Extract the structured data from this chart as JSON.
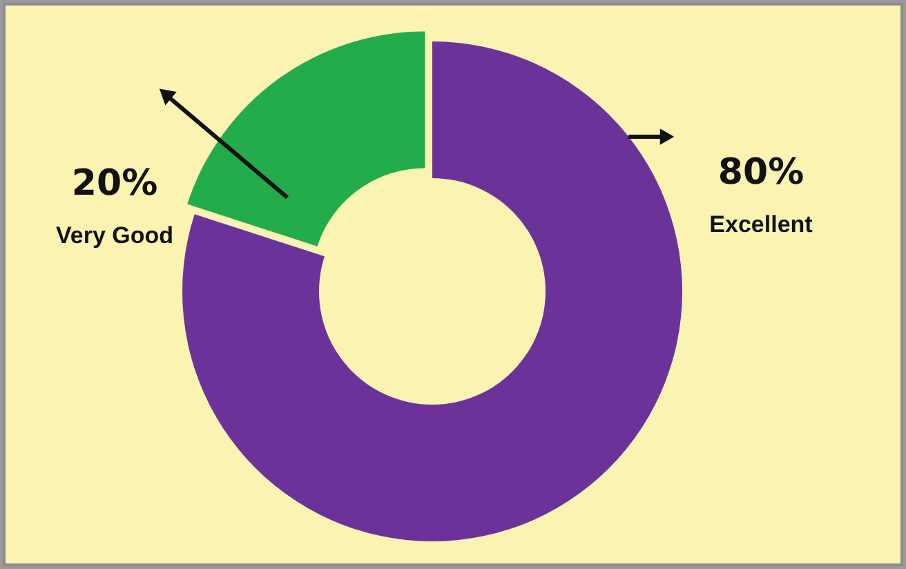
{
  "chart_data": {
    "type": "donut",
    "categories": [
      "Excellent",
      "Very Good"
    ],
    "values": [
      80,
      20
    ],
    "colors": [
      "#6b3399",
      "#22ac4b"
    ],
    "value_labels": [
      "80%",
      "20%"
    ]
  }
}
